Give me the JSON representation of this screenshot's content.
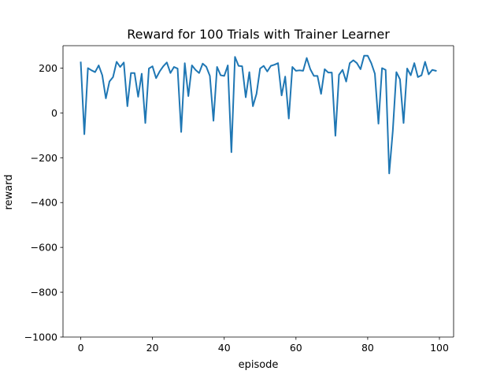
{
  "chart_data": {
    "type": "line",
    "title": "Reward for 100 Trials with Trainer Learner",
    "xlabel": "episode",
    "ylabel": "reward",
    "xlim": [
      -4.95,
      103.95
    ],
    "ylim": [
      -1000,
      300
    ],
    "xticks": [
      0,
      20,
      40,
      60,
      80,
      100
    ],
    "xtick_labels": [
      "0",
      "20",
      "40",
      "60",
      "80",
      "100"
    ],
    "yticks": [
      -1000,
      -800,
      -600,
      -400,
      -200,
      0,
      200
    ],
    "ytick_labels": [
      "−1000",
      "−800",
      "−600",
      "−400",
      "−200",
      "0",
      "200"
    ],
    "grid": false,
    "series": [
      {
        "color": "#1f77b4",
        "x": [
          0,
          1,
          2,
          3,
          4,
          5,
          6,
          7,
          8,
          9,
          10,
          11,
          12,
          13,
          14,
          15,
          16,
          17,
          18,
          19,
          20,
          21,
          22,
          23,
          24,
          25,
          26,
          27,
          28,
          29,
          30,
          31,
          32,
          33,
          34,
          35,
          36,
          37,
          38,
          39,
          40,
          41,
          42,
          43,
          44,
          45,
          46,
          47,
          48,
          49,
          50,
          51,
          52,
          53,
          54,
          55,
          56,
          57,
          58,
          59,
          60,
          61,
          62,
          63,
          64,
          65,
          66,
          67,
          68,
          69,
          70,
          71,
          72,
          73,
          74,
          75,
          76,
          77,
          78,
          79,
          80,
          81,
          82,
          83,
          84,
          85,
          86,
          87,
          88,
          89,
          90,
          91,
          92,
          93,
          94,
          95,
          96,
          97,
          98,
          99
        ],
        "values": [
          225,
          -95,
          200,
          190,
          182,
          212,
          168,
          65,
          140,
          160,
          228,
          205,
          225,
          30,
          178,
          178,
          72,
          175,
          -45,
          198,
          208,
          155,
          185,
          208,
          225,
          178,
          205,
          198,
          -85,
          222,
          75,
          212,
          192,
          178,
          220,
          206,
          165,
          -35,
          205,
          168,
          165,
          212,
          -175,
          250,
          210,
          208,
          70,
          182,
          30,
          85,
          198,
          210,
          185,
          210,
          215,
          222,
          78,
          162,
          -25,
          205,
          188,
          190,
          188,
          245,
          195,
          165,
          165,
          85,
          195,
          180,
          180,
          -102,
          170,
          192,
          140,
          222,
          235,
          222,
          195,
          255,
          255,
          222,
          175,
          -48,
          200,
          192,
          -270,
          -80,
          182,
          150,
          -45,
          198,
          168,
          222,
          160,
          168,
          228,
          172,
          192,
          188
        ]
      }
    ]
  }
}
